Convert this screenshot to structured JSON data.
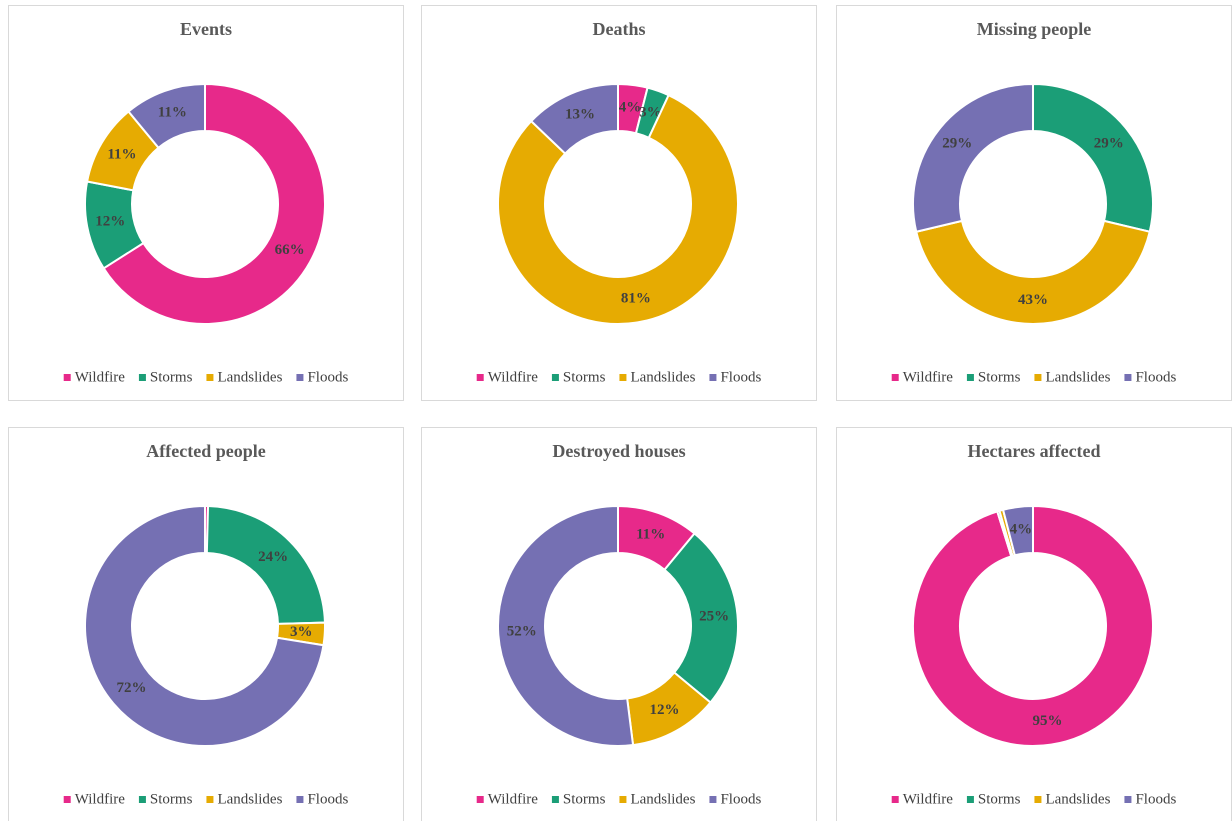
{
  "chart_data": [
    {
      "type": "donut",
      "title": "Events",
      "categories": [
        "Wildfire",
        "Storms",
        "Landslides",
        "Floods"
      ],
      "values": [
        66,
        12,
        11,
        11
      ],
      "value_labels": [
        "66%",
        "12%",
        "11%",
        "11%"
      ],
      "colors": [
        "#e7298a",
        "#1b9e77",
        "#e6ab02",
        "#7570b3"
      ],
      "legend": "bottom"
    },
    {
      "type": "donut",
      "title": "Deaths",
      "categories": [
        "Wildfire",
        "Storms",
        "Landslides",
        "Floods"
      ],
      "values": [
        4,
        3,
        81,
        13
      ],
      "value_labels": [
        "4%",
        "3%",
        "81%",
        "13%"
      ],
      "colors": [
        "#e7298a",
        "#1b9e77",
        "#e6ab02",
        "#7570b3"
      ],
      "legend": "bottom"
    },
    {
      "type": "donut",
      "title": "Missing people",
      "categories": [
        "Wildfire",
        "Storms",
        "Landslides",
        "Floods"
      ],
      "values": [
        0,
        29,
        43,
        29
      ],
      "value_labels": [
        null,
        "29%",
        "43%",
        "29%"
      ],
      "colors": [
        "#e7298a",
        "#1b9e77",
        "#e6ab02",
        "#7570b3"
      ],
      "legend": "bottom"
    },
    {
      "type": "donut",
      "title": "Affected people",
      "categories": [
        "Wildfire",
        "Storms",
        "Landslides",
        "Floods"
      ],
      "values": [
        0.4,
        24,
        3,
        72
      ],
      "value_labels": [
        null,
        "24%",
        "3%",
        "72%"
      ],
      "colors": [
        "#e7298a",
        "#1b9e77",
        "#e6ab02",
        "#7570b3"
      ],
      "legend": "bottom"
    },
    {
      "type": "donut",
      "title": "Destroyed houses",
      "categories": [
        "Wildfire",
        "Storms",
        "Landslides",
        "Floods"
      ],
      "values": [
        11,
        25,
        12,
        52
      ],
      "value_labels": [
        "11%",
        "25%",
        "12%",
        "52%"
      ],
      "colors": [
        "#e7298a",
        "#1b9e77",
        "#e6ab02",
        "#7570b3"
      ],
      "legend": "bottom"
    },
    {
      "type": "donut",
      "title": "Hectares affected",
      "categories": [
        "Wildfire",
        "Storms",
        "Landslides",
        "Floods"
      ],
      "values": [
        95,
        0.3,
        0.5,
        4
      ],
      "value_labels": [
        "95%",
        null,
        null,
        "4%"
      ],
      "colors": [
        "#e7298a",
        "#1b9e77",
        "#e6ab02",
        "#7570b3"
      ],
      "legend": "bottom"
    }
  ]
}
